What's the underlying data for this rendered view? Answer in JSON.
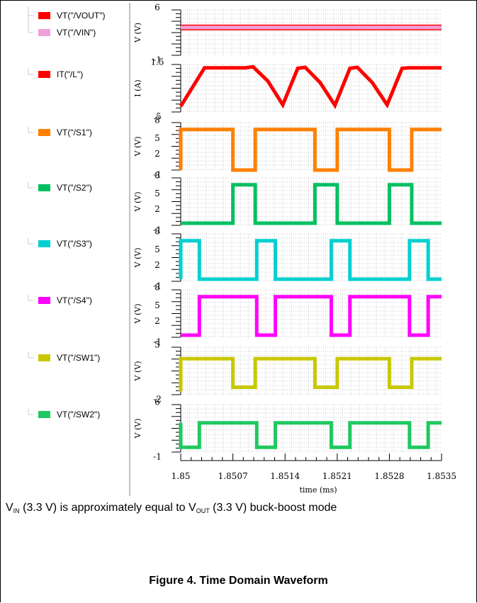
{
  "chart_data": {
    "type": "line",
    "xlabel": "time (ms)",
    "xlim": [
      1.85,
      1.8535
    ],
    "xticks": [
      "1.85",
      "1.8507",
      "1.8514",
      "1.8521",
      "1.8528",
      "1.8535"
    ],
    "panels": [
      {
        "ylabel": "V (V)",
        "yticks": [
          "6",
          "-1"
        ],
        "ylim": [
          -1,
          6
        ],
        "series": [
          {
            "name": "VT(\"/VOUT\")",
            "color": "#ff0000",
            "x": [
              1.85,
              1.8535
            ],
            "y": [
              3.3,
              3.3
            ]
          },
          {
            "name": "VT(\"/VIN\")",
            "color": "#f0a0d8",
            "x": [
              1.85,
              1.8535
            ],
            "y": [
              3.3,
              3.3
            ]
          }
        ]
      },
      {
        "ylabel": "I (A)",
        "yticks": [
          "1.5",
          ".5"
        ],
        "ylim": [
          0.5,
          1.5
        ],
        "series": [
          {
            "name": "IT(\"/L\")",
            "color": "#ff0000",
            "x": [
              1.85,
              1.85032,
              1.85087,
              1.85097,
              1.85117,
              1.85137,
              1.85157,
              1.85167,
              1.85187,
              1.85207,
              1.85227,
              1.85237,
              1.85257,
              1.85277,
              1.85297,
              1.85307,
              1.8535
            ],
            "y": [
              0.62,
              1.43,
              1.43,
              1.45,
              1.15,
              0.65,
              1.42,
              1.44,
              1.12,
              0.64,
              1.42,
              1.44,
              1.12,
              0.65,
              1.42,
              1.43,
              1.43
            ]
          }
        ]
      },
      {
        "ylabel": "V (V)",
        "yticks": [
          "8",
          "5",
          "2",
          "-1"
        ],
        "ylim": [
          -1,
          8
        ],
        "series": [
          {
            "name": "VT(\"/S1\")",
            "color": "#ff8000",
            "x": [
              1.85,
              1.85,
              1.8507,
              1.8507,
              1.851,
              1.851,
              1.8518,
              1.8518,
              1.8521,
              1.8521,
              1.8528,
              1.8528,
              1.8531,
              1.8531,
              1.8535
            ],
            "y": [
              -1,
              6.7,
              6.7,
              -1,
              -1,
              6.7,
              6.7,
              -1,
              -1,
              6.7,
              6.7,
              -1,
              -1,
              6.7,
              6.7
            ]
          }
        ]
      },
      {
        "ylabel": "V (V)",
        "yticks": [
          "8",
          "5",
          "2",
          "-1"
        ],
        "ylim": [
          -1,
          8
        ],
        "series": [
          {
            "name": "VT(\"/S2\")",
            "color": "#00c060",
            "x": [
              1.85,
              1.8507,
              1.8507,
              1.851,
              1.851,
              1.8518,
              1.8518,
              1.8521,
              1.8521,
              1.8528,
              1.8528,
              1.8531,
              1.8531,
              1.8535
            ],
            "y": [
              -0.6,
              -0.6,
              6.7,
              6.7,
              -0.6,
              -0.6,
              6.7,
              6.7,
              -0.6,
              -0.6,
              6.7,
              6.7,
              -0.6,
              -0.6
            ]
          }
        ]
      },
      {
        "ylabel": "V (V)",
        "yticks": [
          "8",
          "5",
          "2",
          "-1"
        ],
        "ylim": [
          -1,
          8
        ],
        "series": [
          {
            "name": "VT(\"/S3\")",
            "color": "#00d0d0",
            "x": [
              1.85,
              1.85,
              1.85025,
              1.85025,
              1.85102,
              1.85102,
              1.85127,
              1.85127,
              1.85202,
              1.85202,
              1.85227,
              1.85227,
              1.85307,
              1.85307,
              1.85332,
              1.85332,
              1.8535
            ],
            "y": [
              -0.6,
              6.7,
              6.7,
              -0.6,
              -0.6,
              6.7,
              6.7,
              -0.6,
              -0.6,
              6.7,
              6.7,
              -0.6,
              -0.6,
              6.7,
              6.7,
              -0.6,
              -0.6
            ]
          }
        ]
      },
      {
        "ylabel": "V (V)",
        "yticks": [
          "8",
          "5",
          "2",
          "-1"
        ],
        "ylim": [
          -1,
          8
        ],
        "series": [
          {
            "name": "VT(\"/S4\")",
            "color": "#ff00ff",
            "x": [
              1.85,
              1.85025,
              1.85025,
              1.85102,
              1.85102,
              1.85127,
              1.85127,
              1.85202,
              1.85202,
              1.85227,
              1.85227,
              1.85307,
              1.85307,
              1.85332,
              1.85332,
              1.8535
            ],
            "y": [
              -0.6,
              -0.6,
              6.7,
              6.7,
              -0.6,
              -0.6,
              6.7,
              6.7,
              -0.6,
              -0.6,
              6.7,
              6.7,
              -0.6,
              -0.6,
              6.7,
              6.7
            ]
          }
        ]
      },
      {
        "ylabel": "V (V)",
        "yticks": [
          "5",
          "-2"
        ],
        "ylim": [
          -2,
          5
        ],
        "series": [
          {
            "name": "VT(\"/SW1\")",
            "color": "#c8c800",
            "x": [
              1.85,
              1.85,
              1.8507,
              1.8507,
              1.851,
              1.851,
              1.8518,
              1.8518,
              1.8521,
              1.8521,
              1.8528,
              1.8528,
              1.8531,
              1.8531,
              1.8535
            ],
            "y": [
              -1.5,
              3.3,
              3.3,
              -0.9,
              -0.9,
              3.3,
              3.3,
              -0.9,
              -0.9,
              3.3,
              3.3,
              -0.9,
              -0.9,
              3.3,
              3.3
            ]
          }
        ]
      },
      {
        "ylabel": "V (V)",
        "yticks": [
          "6",
          "-1"
        ],
        "ylim": [
          -1,
          6
        ],
        "series": [
          {
            "name": "VT(\"/SW2\")",
            "color": "#20c860",
            "x": [
              1.85,
              1.85,
              1.85025,
              1.85025,
              1.85102,
              1.85102,
              1.85127,
              1.85127,
              1.85202,
              1.85202,
              1.85227,
              1.85227,
              1.85307,
              1.85307,
              1.85332,
              1.85332,
              1.8535
            ],
            "y": [
              3.3,
              -0.3,
              -0.3,
              3.3,
              3.3,
              -0.3,
              -0.3,
              3.3,
              3.3,
              -0.3,
              -0.3,
              3.3,
              3.3,
              -0.3,
              -0.3,
              3.3,
              3.3
            ]
          }
        ]
      }
    ]
  },
  "caption": {
    "v1": "V",
    "sub1": "IN",
    "mid": " (3.3 V) is approximately equal to V",
    "sub2": "OUT",
    "tail": " (3.3 V) buck-boost mode"
  },
  "figure_title": "Figure 4. Time Domain Waveform"
}
